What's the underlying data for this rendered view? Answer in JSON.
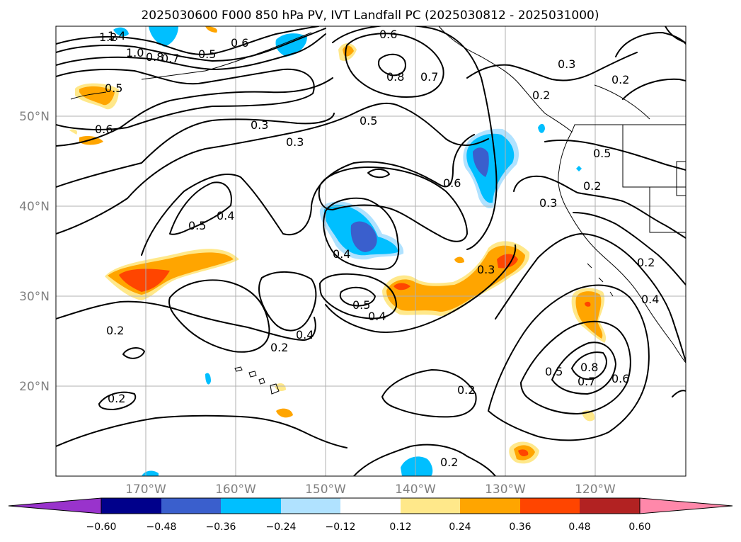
{
  "title": "2025030600 F000 850 hPa PV, IVT Landfall PC (2025030812 - 2025031000)",
  "map": {
    "lon_range": [
      -180,
      -110
    ],
    "lat_range": [
      10,
      60
    ],
    "lon_ticks": [
      {
        "lon": -170,
        "label": "170°W"
      },
      {
        "lon": -160,
        "label": "160°W"
      },
      {
        "lon": -150,
        "label": "150°W"
      },
      {
        "lon": -140,
        "label": "140°W"
      },
      {
        "lon": -130,
        "label": "130°W"
      },
      {
        "lon": -120,
        "label": "120°W"
      }
    ],
    "lat_ticks": [
      {
        "lat": 20,
        "label": "20°N"
      },
      {
        "lat": 30,
        "label": "30°N"
      },
      {
        "lat": 40,
        "label": "40°N"
      },
      {
        "lat": 50,
        "label": "50°N"
      }
    ],
    "grid": true,
    "contour_labels": [
      "1.4",
      "1.2",
      "1.0",
      "0.8",
      "0.7",
      "0.5",
      "0.6",
      "0.5",
      "0.6",
      "0.6",
      "0.8",
      "0.7",
      "0.3",
      "0.2",
      "0.2",
      "0.3",
      "0.5",
      "0.3",
      "0.5",
      "0.6",
      "0.5",
      "0.4",
      "0.2",
      "0.3",
      "0.4",
      "0.3",
      "0.5",
      "0.4",
      "0.4",
      "0.2",
      "0.2",
      "0.2",
      "0.2",
      "0.5",
      "0.8",
      "0.7",
      "0.6",
      "0.2",
      "0.4",
      "0.2"
    ]
  },
  "colorbar": {
    "extend": "both",
    "colors": [
      "#9933cc",
      "#00008b",
      "#3a5fcd",
      "#00bfff",
      "#b0e2ff",
      "#ffffff",
      "#ffe88a",
      "#ffa500",
      "#ff4500",
      "#b22222",
      "#ff88aa"
    ],
    "tick_labels": [
      "−0.60",
      "−0.48",
      "−0.36",
      "−0.24",
      "−0.12",
      "0.12",
      "0.24",
      "0.36",
      "0.48",
      "0.60"
    ]
  },
  "chart_data": {
    "type": "heatmap",
    "field": "850 hPa PV contours with IVT landfall PC shading",
    "x_range": [
      -180,
      -110
    ],
    "y_range": [
      10,
      60
    ],
    "levels": [
      -0.6,
      -0.48,
      -0.36,
      -0.24,
      -0.12,
      0.12,
      0.24,
      0.36,
      0.48,
      0.6
    ],
    "contour_levels": [
      0.2,
      0.3,
      0.4,
      0.5,
      0.6,
      0.7,
      0.8,
      1.0,
      1.2,
      1.4
    ],
    "positive_features": [
      {
        "lon": -170,
        "lat": 32.5,
        "value": 0.4
      },
      {
        "lon": -145,
        "lat": 31,
        "value": 0.36
      },
      {
        "lon": -133,
        "lat": 33,
        "value": 0.36
      },
      {
        "lon": -173,
        "lat": 52.5,
        "value": 0.3
      },
      {
        "lon": -122,
        "lat": 29,
        "value": 0.36
      },
      {
        "lon": -129,
        "lat": 12.5,
        "value": 0.36
      }
    ],
    "negative_features": [
      {
        "lon": -147,
        "lat": 36.5,
        "value": -0.45
      },
      {
        "lon": -133.5,
        "lat": 43.5,
        "value": -0.4
      },
      {
        "lon": -166,
        "lat": 59,
        "value": -0.25
      },
      {
        "lon": -155.5,
        "lat": 57.5,
        "value": -0.3
      },
      {
        "lon": -141,
        "lat": 11,
        "value": -0.3
      }
    ]
  }
}
